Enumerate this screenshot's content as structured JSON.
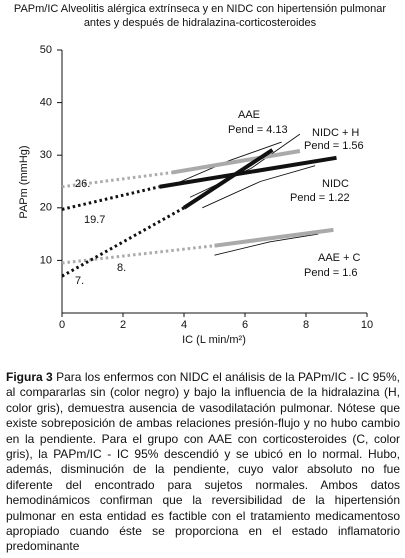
{
  "chart_data": {
    "type": "line",
    "title": "PAPm/IC Alveolitis alérgica extrínseca y en NIDC con hipertensión pulmonar",
    "subtitle": "antes y después de hidralazina-corticosteroides",
    "x_label": "IC (L min/m²)",
    "y_label": "PAPm (mmHg)",
    "xlim": [
      0,
      10
    ],
    "xticks": [
      0,
      2,
      4,
      6,
      8,
      10
    ],
    "ylim": [
      0,
      50
    ],
    "yticks": [
      10,
      20,
      30,
      40,
      50
    ],
    "series": [
      {
        "x": [
          3.5,
          5.5,
          7.2
        ],
        "values": [
          24,
          29,
          32.5
        ],
        "color": "#111111",
        "style": "thin"
      },
      {
        "x": [
          4.2,
          6.2,
          7.8
        ],
        "values": [
          22,
          27.5,
          34
        ],
        "color": "#111111",
        "style": "thin"
      },
      {
        "x": [
          4.6,
          6.5,
          8.3
        ],
        "values": [
          20,
          25,
          28
        ],
        "color": "#111111",
        "style": "thin"
      },
      {
        "x": [
          5,
          6.8,
          8.4
        ],
        "values": [
          11,
          13.5,
          15
        ],
        "color": "#111111",
        "style": "thin"
      },
      {
        "x": [
          0,
          3.6
        ],
        "values": [
          24,
          26.7
        ],
        "color": "#aaaaaa",
        "style": "dotted"
      },
      {
        "x": [
          3.6,
          7.8
        ],
        "values": [
          26.7,
          30.8
        ],
        "color": "#aaaaaa",
        "style": "solid"
      },
      {
        "x": [
          0,
          5
        ],
        "values": [
          9.5,
          12.8
        ],
        "color": "#aaaaaa",
        "style": "dotted"
      },
      {
        "x": [
          5,
          8.9
        ],
        "values": [
          12.8,
          15.8
        ],
        "color": "#aaaaaa",
        "style": "solid"
      },
      {
        "x": [
          0,
          3.2
        ],
        "values": [
          19.7,
          24
        ],
        "color": "#111111",
        "style": "dotted"
      },
      {
        "x": [
          3.2,
          9
        ],
        "values": [
          24,
          29.5
        ],
        "color": "#111111",
        "style": "solid"
      },
      {
        "x": [
          0,
          4
        ],
        "values": [
          7,
          20
        ],
        "color": "#111111",
        "style": "dotted"
      },
      {
        "x": [
          4,
          6.9
        ],
        "values": [
          20,
          31
        ],
        "color": "#111111",
        "style": "solid"
      }
    ],
    "annotations": [
      "AAE",
      "Pend = 4.13",
      "NIDC + H",
      "Pend = 1.56",
      "NIDC",
      "Pend = 1.22",
      "AAE + C",
      "Pend = 1.6",
      "26.",
      "19.7",
      "7.",
      "8."
    ]
  },
  "caption": {
    "label": "Figura 3",
    "text": "Para los enfermos con NIDC el análisis de la PAPm/IC - IC 95%, al compararlas sin (color negro) y bajo la influencia de la hidralazina (H, color gris), demuestra ausencia de vasodilatación pulmonar. Nótese que existe sobreposición de ambas relaciones presión-flujo y no hubo cambio en la pendiente. Para el grupo con AAE con corticosteroides (C, color gris), la PAPm/IC - IC 95% descendió y se ubicó en lo normal. Hubo, además, disminución de la pendiente, cuyo valor absoluto no fue diferente del encontrado para sujetos normales. Ambos datos hemodinámicos confirman que la reversibilidad de la hipertensión pulmonar en esta entidad es factible con el tratamiento medicamentoso apropiado cuando éste se proporciona en el estado inflamatorio predominante"
  }
}
